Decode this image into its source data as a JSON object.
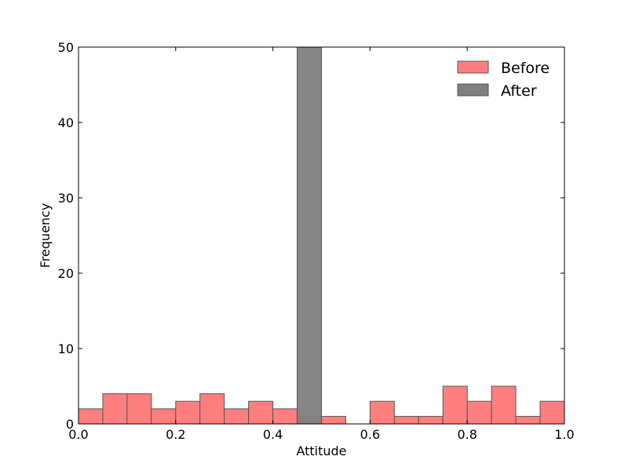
{
  "chart_data": {
    "type": "bar",
    "title": "",
    "xlabel": "Attitude",
    "ylabel": "Frequency",
    "xlim": [
      0.0,
      1.0
    ],
    "ylim": [
      0,
      50
    ],
    "xticks": [
      "0.0",
      "0.2",
      "0.4",
      "0.6",
      "0.8",
      "1.0"
    ],
    "yticks": [
      "0",
      "10",
      "20",
      "30",
      "40",
      "50"
    ],
    "grid": false,
    "legend_position": "top-right",
    "bin_edges": [
      0.0,
      0.05,
      0.1,
      0.15,
      0.2,
      0.25,
      0.3,
      0.35,
      0.4,
      0.45,
      0.5,
      0.55,
      0.6,
      0.65,
      0.7,
      0.75,
      0.8,
      0.85,
      0.9,
      0.95,
      1.0
    ],
    "series": [
      {
        "name": "Before",
        "color": "#ff7f7f",
        "values": [
          2,
          4,
          4,
          2,
          3,
          4,
          2,
          3,
          2,
          1,
          1,
          0,
          3,
          1,
          1,
          5,
          3,
          5,
          1,
          3
        ]
      },
      {
        "name": "After",
        "color": "#7f7f7f",
        "values": [
          0,
          0,
          0,
          0,
          0,
          0,
          0,
          0,
          0,
          50,
          0,
          0,
          0,
          0,
          0,
          0,
          0,
          0,
          0,
          0
        ]
      }
    ]
  }
}
